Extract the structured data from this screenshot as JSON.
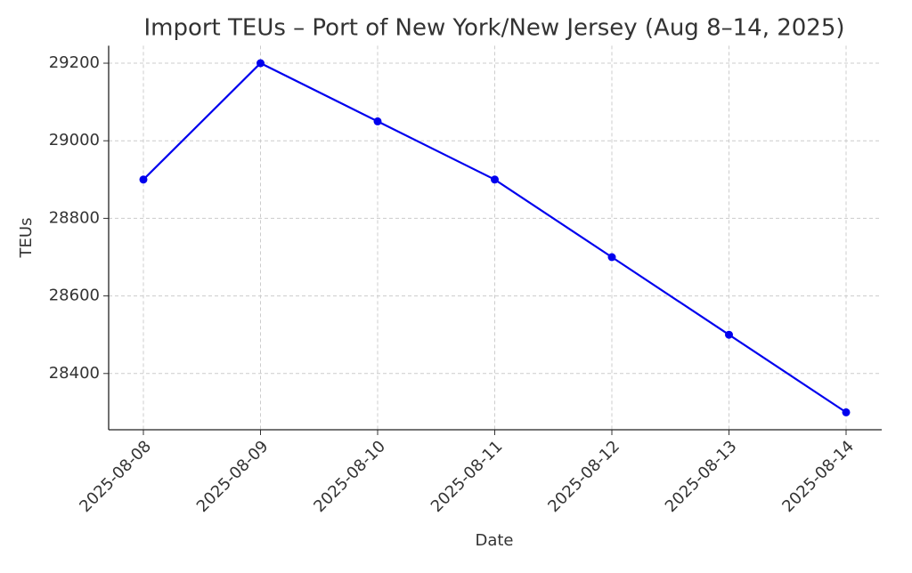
{
  "chart_data": {
    "type": "line",
    "title": "Import TEUs – Port of New York/New Jersey (Aug 8–14, 2025)",
    "x_label": "Date",
    "y_label": "TEUs",
    "categories": [
      "2025-08-08",
      "2025-08-09",
      "2025-08-10",
      "2025-08-11",
      "2025-08-12",
      "2025-08-13",
      "2025-08-14"
    ],
    "series": [
      {
        "name": "Import TEUs",
        "color": "#0000ee",
        "values": [
          28900,
          29200,
          29050,
          28900,
          28700,
          28500,
          28300
        ]
      }
    ],
    "ylim": [
      28255,
      29245
    ],
    "yticks": [
      28400,
      28600,
      28800,
      29000,
      29200
    ],
    "grid": true
  }
}
